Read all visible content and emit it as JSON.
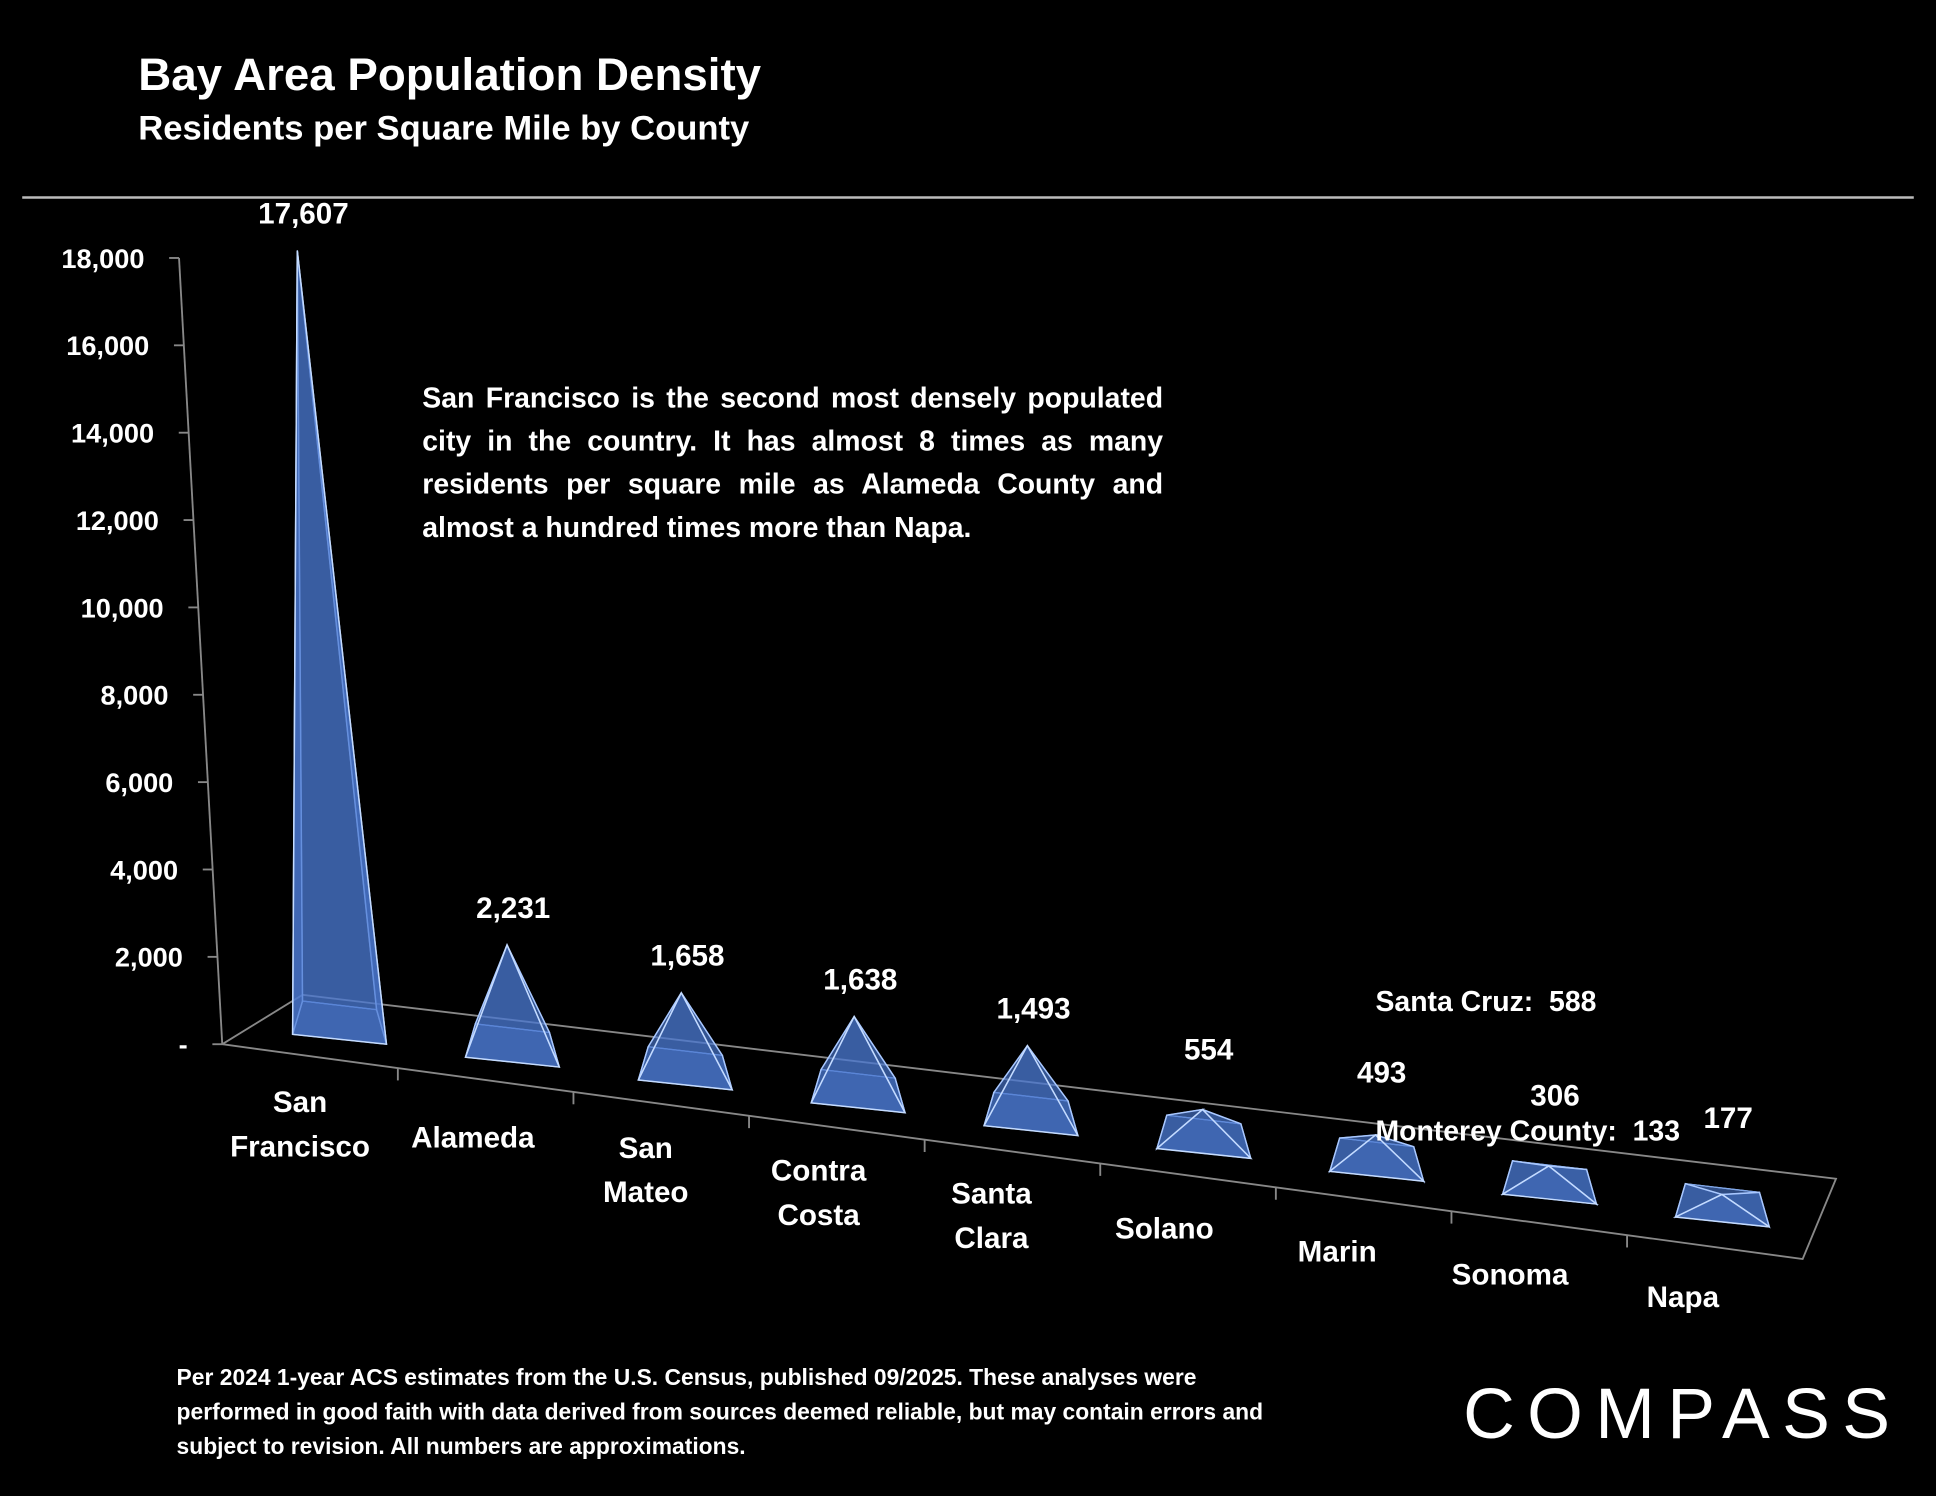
{
  "chart_data": {
    "type": "pyramid",
    "title": "Bay Area Population Density",
    "subtitle": "Residents per Square Mile by County",
    "categories": [
      "San Francisco",
      "Alameda",
      "San Mateo",
      "Contra Costa",
      "Santa Clara",
      "Solano",
      "Marin",
      "Sonoma",
      "Napa"
    ],
    "values": [
      17607,
      2231,
      1658,
      1638,
      1493,
      554,
      493,
      306,
      177
    ],
    "value_labels": [
      "17,607",
      "2,231",
      "1,658",
      "1,638",
      "1,493",
      "554",
      "493",
      "306",
      "177"
    ],
    "color": "#4a78d0",
    "ylim": [
      0,
      18000
    ],
    "yticks": [
      {
        "value": 0,
        "label": "-"
      },
      {
        "value": 2000,
        "label": "2,000"
      },
      {
        "value": 4000,
        "label": "4,000"
      },
      {
        "value": 6000,
        "label": "6,000"
      },
      {
        "value": 8000,
        "label": "8,000"
      },
      {
        "value": 10000,
        "label": "10,000"
      },
      {
        "value": 12000,
        "label": "12,000"
      },
      {
        "value": 14000,
        "label": "14,000"
      },
      {
        "value": 16000,
        "label": "16,000"
      },
      {
        "value": 18000,
        "label": "18,000"
      }
    ],
    "annotation": "San Francisco is the second most densely populated city in the country. It has almost 8 times as many residents per square mile as Alameda County and almost a hundred times more than Napa.",
    "side_note": [
      "Santa Cruz:  588",
      "Monterey County:  133"
    ]
  },
  "footnote": "Per 2024 1-year ACS estimates from the U.S. Census, published 09/2025. These analyses were performed in good faith with data derived from sources deemed reliable, but may contain errors and subject to revision. All numbers are approximations.",
  "logo": "COMPASS"
}
